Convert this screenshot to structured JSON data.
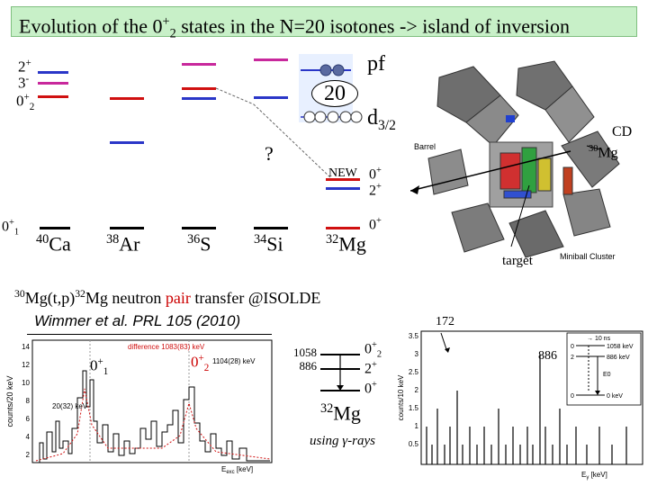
{
  "title": {
    "text": "Evolution of the 0",
    "sup": "+",
    "sub": "2",
    "rest": " states in the N=20 isotones -> island of inversion"
  },
  "legend": {
    "l1": {
      "main": "2",
      "sup": "+"
    },
    "l2": {
      "main": "3",
      "sup": "-"
    },
    "l3": {
      "main": "0",
      "sup": "+",
      "sub": "2"
    }
  },
  "colors": {
    "blue": "#2a36c8",
    "magenta": "#c8289c",
    "red": "#d01010",
    "black": "#000000",
    "title_bg": "#c8f0c8"
  },
  "shell": {
    "pf": "pf",
    "n20": "20",
    "d32": "d",
    "d32_sub": "3/2"
  },
  "question_mark": "?",
  "new_label": "NEW",
  "mg_new": {
    "s1": "0",
    "s1_sup": "+",
    "s2": "2",
    "s2_sup": "+",
    "gs": "0",
    "gs_sup": "+"
  },
  "ground_label": {
    "main": "0",
    "sup": "+",
    "sub": "1"
  },
  "isotopes": [
    {
      "mass": "40",
      "el": "Ca"
    },
    {
      "mass": "38",
      "el": "Ar"
    },
    {
      "mass": "36",
      "el": "S"
    },
    {
      "mass": "34",
      "el": "Si"
    },
    {
      "mass": "32",
      "el": "Mg"
    }
  ],
  "detector": {
    "cd": "CD",
    "target_mass": "30",
    "target_el": "Mg",
    "barrel": "Barrel",
    "miniball": "Miniball Cluster",
    "target": "target"
  },
  "reaction": {
    "m1": "30",
    "t1": "Mg(t,p)",
    "m2": "32",
    "t2": "Mg neutron ",
    "pair": "pair",
    "t3": " transfer @ISOLDE"
  },
  "citation": "Wimmer et al. PRL 105 (2010)",
  "left_spectrum": {
    "ylabel": "counts/20 keV",
    "xlabel": "E",
    "xlabel_sub": "exc",
    "xlabel_unit": " [keV]",
    "yticks": [
      "14",
      "12",
      "10",
      "8",
      "6",
      "4",
      "2"
    ],
    "annotation_diff": "difference 1083(83) keV",
    "annotation_peak": "1104(28) keV",
    "annotation_res": "20(32) keV",
    "state1": {
      "main": "0",
      "sup": "+",
      "sub": "1"
    },
    "state2": {
      "main": "0",
      "sup": "+",
      "sub": "2"
    }
  },
  "level_scheme": {
    "e1": "1058",
    "e2": "886",
    "s1": "0",
    "s1_sup": "+",
    "s1_sub": "2",
    "s2": "2",
    "s2_sup": "+",
    "s3": "0",
    "s3_sup": "+",
    "nuc_mass": "32",
    "nuc_el": "Mg",
    "note": "using γ-rays"
  },
  "right_spectrum": {
    "top_label": "172",
    "ylabel": "counts/10 keV",
    "xlabel": "E",
    "xlabel_sub": "γ",
    "xlabel_unit": " [keV]",
    "yticks": [
      "3.5",
      "3",
      "2.5",
      "2",
      "1.5",
      "1",
      "0.5"
    ],
    "peak": "886",
    "inset_title": "→ 10 ns",
    "inset_0p2": "0",
    "inset_2p": "2",
    "inset_0p": "0",
    "inset_e1": "1058 keV",
    "inset_e2": "886 keV",
    "inset_e0": "E0",
    "inset_e3": "0 keV"
  }
}
